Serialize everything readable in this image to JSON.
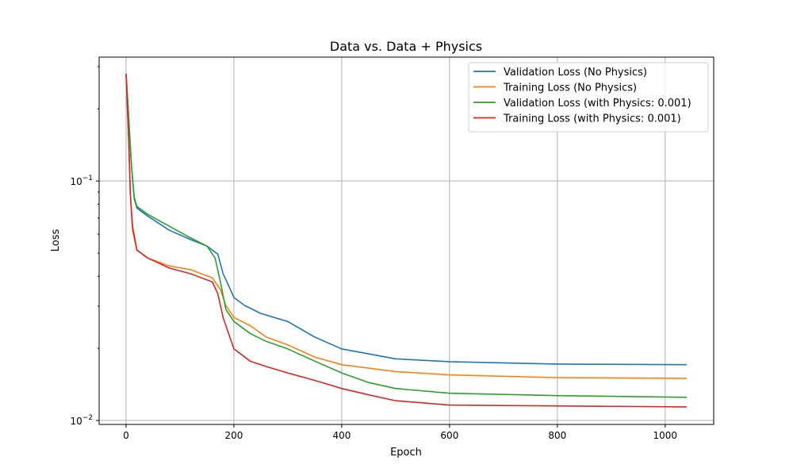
{
  "chart_data": {
    "type": "line",
    "title": "Data vs. Data + Physics",
    "xlabel": "Epoch",
    "ylabel": "Loss",
    "xlim": [
      -50,
      1090
    ],
    "ylim": [
      0.00963,
      0.329
    ],
    "yscale": "log",
    "grid": true,
    "legend_position": "top-right",
    "xticks": [
      0,
      200,
      400,
      600,
      800,
      1000
    ],
    "xtick_labels": [
      "0",
      "200",
      "400",
      "600",
      "800",
      "1000"
    ],
    "yticks": [
      0.1,
      0.01
    ],
    "ytick_labels": [
      {
        "base": "10",
        "exp": "−1"
      },
      {
        "base": "10",
        "exp": "−2"
      }
    ],
    "series": [
      {
        "name": "Validation Loss (No Physics)",
        "color": "#1f77b4",
        "x": [
          0,
          5,
          10,
          15,
          20,
          40,
          80,
          120,
          150,
          170,
          180,
          190,
          200,
          220,
          250,
          300,
          350,
          400,
          500,
          600,
          800,
          1040
        ],
        "y": [
          0.28,
          0.181,
          0.115,
          0.0846,
          0.0771,
          0.0714,
          0.0623,
          0.0569,
          0.0535,
          0.0495,
          0.041,
          0.0366,
          0.0326,
          0.0302,
          0.028,
          0.0259,
          0.0223,
          0.0199,
          0.0181,
          0.0176,
          0.0172,
          0.0171
        ]
      },
      {
        "name": "Training Loss (No Physics)",
        "color": "#ff7f0e",
        "x": [
          0,
          5,
          8,
          12,
          20,
          40,
          80,
          120,
          160,
          175,
          185,
          200,
          230,
          260,
          300,
          350,
          400,
          500,
          600,
          800,
          1040
        ],
        "y": [
          0.28,
          0.144,
          0.0879,
          0.0623,
          0.0515,
          0.0477,
          0.0442,
          0.0426,
          0.0394,
          0.0352,
          0.0302,
          0.0269,
          0.0249,
          0.0223,
          0.0207,
          0.0184,
          0.0171,
          0.016,
          0.0155,
          0.0151,
          0.015
        ]
      },
      {
        "name": "Validation Loss (with Physics: 0.001)",
        "color": "#2ca02c",
        "x": [
          0,
          5,
          10,
          15,
          20,
          40,
          80,
          120,
          150,
          165,
          175,
          185,
          200,
          230,
          260,
          300,
          350,
          400,
          450,
          500,
          600,
          800,
          1040
        ],
        "y": [
          0.28,
          0.181,
          0.115,
          0.0859,
          0.0783,
          0.0726,
          0.0647,
          0.0578,
          0.0535,
          0.0477,
          0.0379,
          0.0291,
          0.0259,
          0.0231,
          0.0214,
          0.0199,
          0.0177,
          0.0158,
          0.0144,
          0.0136,
          0.013,
          0.0127,
          0.0125
        ]
      },
      {
        "name": "Training Loss (with Physics: 0.001)",
        "color": "#d62728",
        "x": [
          0,
          5,
          8,
          12,
          20,
          40,
          80,
          120,
          160,
          170,
          180,
          190,
          200,
          230,
          260,
          300,
          350,
          400,
          450,
          500,
          600,
          800,
          1040
        ],
        "y": [
          0.28,
          0.144,
          0.0879,
          0.0647,
          0.0515,
          0.0477,
          0.0433,
          0.041,
          0.0379,
          0.0339,
          0.0269,
          0.0231,
          0.0199,
          0.0177,
          0.0168,
          0.0158,
          0.0147,
          0.0136,
          0.0128,
          0.0121,
          0.0116,
          0.0115,
          0.0114
        ]
      }
    ]
  }
}
